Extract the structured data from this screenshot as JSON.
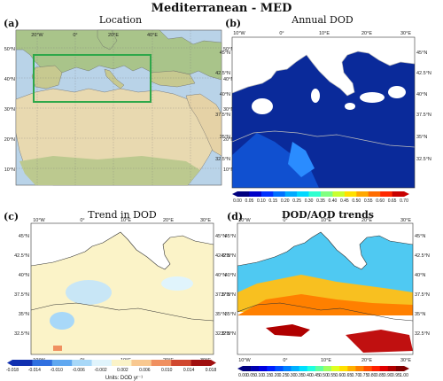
{
  "figure_title": "Mediterranean - MED",
  "colors": {
    "land": "#e7dcc4",
    "sea": "#b9d3e8",
    "desert": "#e8d9b0",
    "green_land": "#a9c48a",
    "box": "#2ea84a",
    "dod_sea": "#0a2a9a",
    "trend_base": "#fbf3c8"
  },
  "panels": [
    {
      "letter": "(a)",
      "title": "Location",
      "lat_labels": [
        "50°N",
        "40°N",
        "30°N",
        "20°N",
        "10°N"
      ],
      "lon_labels": [
        "20°W",
        "0°",
        "20°E",
        "40°E"
      ]
    },
    {
      "letter": "(b)",
      "title": "Annual DOD",
      "lat_labels": [
        "45°N",
        "42.5°N",
        "40°N",
        "37.5°N",
        "35°N",
        "32.5°N"
      ],
      "lon_labels": [
        "10°W",
        "0°",
        "10°E",
        "20°E",
        "30°E"
      ]
    },
    {
      "letter": "(c)",
      "title": "Trend in DOD",
      "lat_labels": [
        "45°N",
        "42.5°N",
        "40°N",
        "37.5°N",
        "35°N",
        "32.5°N"
      ],
      "lon_labels": [
        "10°W",
        "0°",
        "10°E",
        "20°E",
        "30°E"
      ]
    },
    {
      "letter": "(d)",
      "title": "DOD/AOD trends",
      "lat_labels": [
        "45°N",
        "42.5°N",
        "40°N",
        "37.5°N",
        "35°N",
        "32.5°N"
      ],
      "lon_labels": [
        "10°W",
        "0°",
        "10°E",
        "20°E",
        "30°E"
      ]
    }
  ],
  "colorbars": [
    {
      "ticks": [
        "0.00",
        "0.05",
        "0.10",
        "0.15",
        "0.20",
        "0.25",
        "0.30",
        "0.35",
        "0.40",
        "0.45",
        "0.50",
        "0.55",
        "0.60",
        "0.65",
        "0.70"
      ],
      "colors": [
        "#00007f",
        "#0000c8",
        "#0030ff",
        "#0070ff",
        "#00aaff",
        "#00d8ff",
        "#30ffd0",
        "#80ff80",
        "#c8ff30",
        "#ffe000",
        "#ffa800",
        "#ff6c00",
        "#ff2800",
        "#c80000"
      ]
    },
    {
      "ticks": [
        "-0.018",
        "-0.014",
        "-0.010",
        "-0.006",
        "-0.002",
        "0.002",
        "0.006",
        "0.010",
        "0.014",
        "0.018"
      ],
      "colors": [
        "#1030b0",
        "#3070e0",
        "#60a8f0",
        "#a8d8f8",
        "#e0f4fc",
        "#fbf3c8",
        "#f8c890",
        "#f09060",
        "#d04830",
        "#a01010"
      ],
      "units": "Units: DOD yr⁻¹"
    },
    {
      "ticks": [
        "0.00",
        "0.05",
        "0.10",
        "0.15",
        "0.20",
        "0.25",
        "0.30",
        "0.35",
        "0.40",
        "0.45",
        "0.50",
        "0.55",
        "0.60",
        "0.65",
        "0.70",
        "0.75",
        "0.80",
        "0.85",
        "0.90",
        "0.95",
        "1.00"
      ],
      "colors": [
        "#00007f",
        "#0000b0",
        "#0000e0",
        "#0020ff",
        "#0050ff",
        "#0080ff",
        "#00b0ff",
        "#00e0ff",
        "#20ffe0",
        "#60ffa0",
        "#a0ff60",
        "#e0ff20",
        "#ffe000",
        "#ffb000",
        "#ff8000",
        "#ff5000",
        "#ff2000",
        "#e00000",
        "#b00000",
        "#800000"
      ]
    }
  ]
}
